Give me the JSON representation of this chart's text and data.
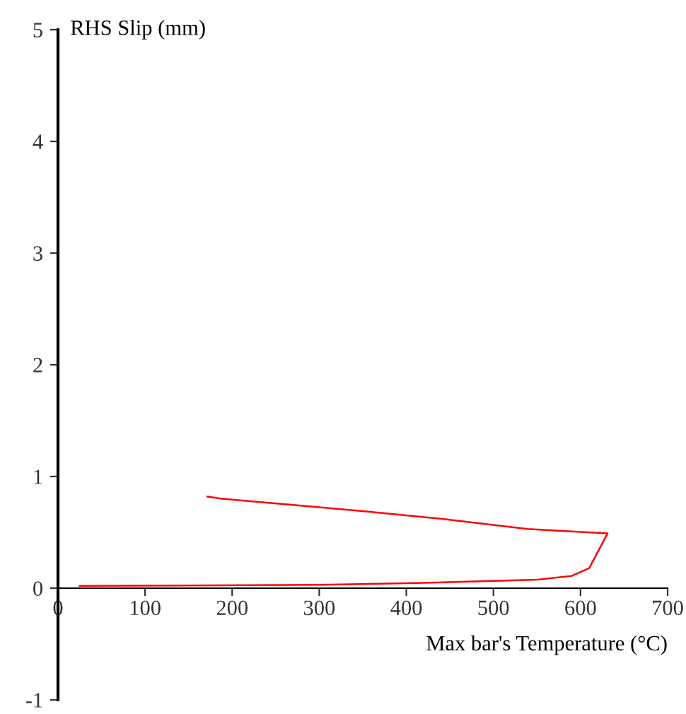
{
  "chart_data": {
    "type": "line",
    "xlabel": "Max bar's Temperature (°C)",
    "ylabel": "RHS Slip (mm)",
    "series": [
      {
        "color": "#ff0000",
        "x": [
          25,
          300,
          420,
          550,
          590,
          610,
          631,
          539,
          441,
          350,
          263,
          188,
          171.5
        ],
        "values": [
          0.02,
          0.03,
          0.047,
          0.076,
          0.11,
          0.18,
          0.49,
          0.53,
          0.62,
          0.69,
          0.75,
          0.8,
          0.82
        ]
      }
    ],
    "xlim": [
      0,
      700
    ],
    "xticks": [
      0,
      100,
      200,
      300,
      400,
      500,
      600,
      700
    ],
    "ylim": [
      -1,
      5
    ],
    "yticks": [
      -1,
      0,
      1,
      2,
      3,
      4,
      5
    ],
    "grid": false,
    "legend": false,
    "marker": "none",
    "line_style": "solid"
  }
}
